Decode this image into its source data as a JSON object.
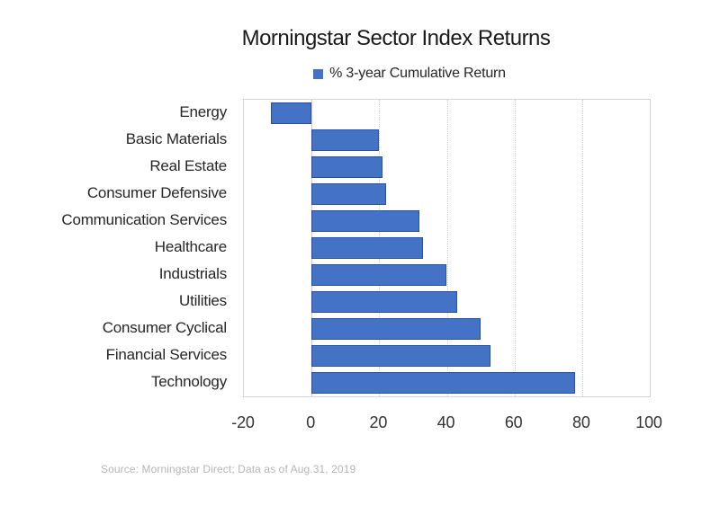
{
  "page": {
    "background": "#ffffff"
  },
  "source_note": "Source: Morningstar Direct; Data as of Aug.31, 2019",
  "colors": {
    "bar_fill": "#4472C4",
    "bar_border": "#2B50A1",
    "gridline": "#D2D2D2",
    "zero_line": "#C9C9C9",
    "plot_border": "#D6D6D6",
    "title_text": "#1A1A1A",
    "label_text": "#262626",
    "source_text": "#B6B6B6"
  },
  "chart_data": {
    "type": "bar",
    "orientation": "horizontal",
    "title": "Morningstar Sector Index Returns",
    "legend": [
      "% 3-year Cumulative Return"
    ],
    "legend_position": "top",
    "categories": [
      "Energy",
      "Basic Materials",
      "Real Estate",
      "Consumer Defensive",
      "Communication Services",
      "Healthcare",
      "Industrials",
      "Utilities",
      "Consumer Cyclical",
      "Financial Services",
      "Technology"
    ],
    "values": [
      -12,
      20,
      21,
      22,
      32,
      33,
      40,
      43,
      50,
      53,
      78
    ],
    "xlabel": "",
    "ylabel": "",
    "xlim": [
      -20,
      100
    ],
    "xticks": [
      -20,
      0,
      20,
      40,
      60,
      80,
      100
    ],
    "grid": true
  }
}
